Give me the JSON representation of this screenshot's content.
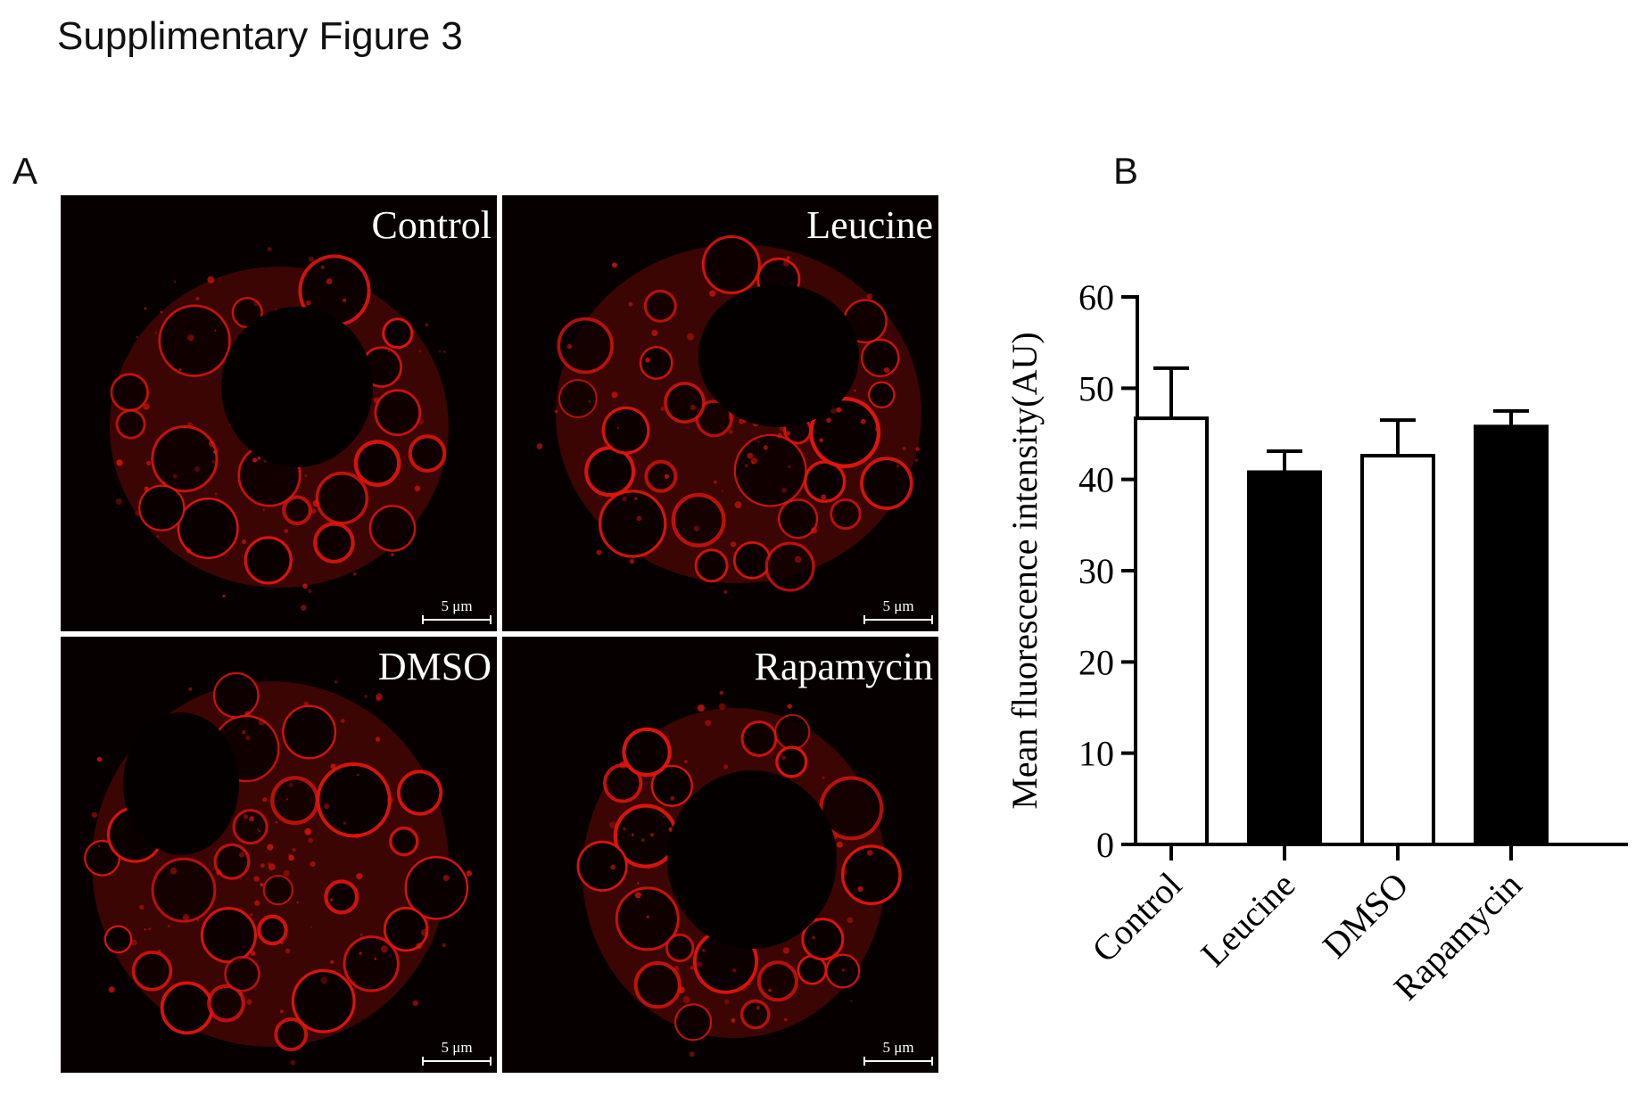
{
  "figure": {
    "title": "Supplimentary Figure 3",
    "panel_a_letter": "A",
    "panel_b_letter": "B"
  },
  "micrographs": [
    {
      "label": "Control",
      "scale_bar": "5 μm"
    },
    {
      "label": "Leucine",
      "scale_bar": "5 μm"
    },
    {
      "label": "DMSO",
      "scale_bar": "5 μm"
    },
    {
      "label": "Rapamycin",
      "scale_bar": "5 μm"
    }
  ],
  "colors": {
    "stain": "#e0150c",
    "background": "#060000",
    "bar_fill_a": "#ffffff",
    "bar_fill_b": "#000000"
  },
  "chart_data": {
    "type": "bar",
    "title": "",
    "xlabel": "",
    "ylabel": "Mean fluorescence intensity(AU)",
    "categories": [
      "Control",
      "Leucine",
      "DMSO",
      "Rapamycin"
    ],
    "values": [
      46.7,
      40.8,
      42.6,
      45.8
    ],
    "error": [
      5.5,
      2.3,
      3.9,
      1.7
    ],
    "fills": [
      "#ffffff",
      "#000000",
      "#ffffff",
      "#000000"
    ],
    "ylim": [
      0,
      60
    ],
    "yticks": [
      0,
      10,
      20,
      30,
      40,
      50,
      60
    ],
    "grid": false,
    "legend": "none"
  }
}
